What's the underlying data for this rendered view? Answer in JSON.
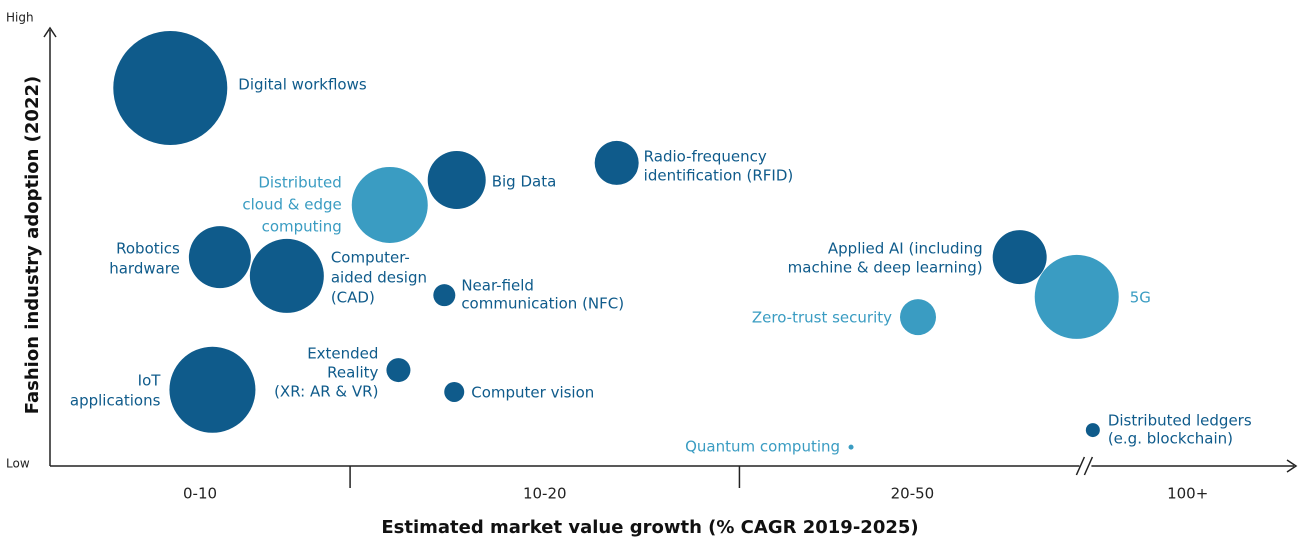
{
  "chart_data": {
    "type": "bubble",
    "x_label": "Estimated market value growth (% CAGR 2019-2025)",
    "y_label": "Fashion industry adoption (2022)",
    "categories": [
      "0-10",
      "10-20",
      "20-50",
      "100+"
    ],
    "xlim": [
      0,
      100
    ],
    "xticks": [
      24.2,
      55.6,
      83.5
    ],
    "axis_break": true,
    "ylim": [
      0,
      100
    ],
    "yticks": [
      {
        "value": 0,
        "label": "Low"
      },
      {
        "value": 100,
        "label": "High"
      }
    ],
    "points": [
      {
        "label": [
          "Digital workflows"
        ],
        "x": 9.7,
        "y": 86.3,
        "size": 57,
        "color": "#0f5b8b"
      },
      {
        "label": [
          "Big Data"
        ],
        "x": 32.8,
        "y": 65.3,
        "size": 29,
        "color": "#0f5b8b"
      },
      {
        "label": [
          "Radio-frequency",
          "identification (RFID)"
        ],
        "x": 45.7,
        "y": 69.2,
        "size": 22,
        "color": "#0f5b8b"
      },
      {
        "label": [
          "Distributed",
          "cloud & edge",
          "computing"
        ],
        "x": 27.4,
        "y": 59.6,
        "size": 38,
        "color": "#3a9cc2"
      },
      {
        "label": [
          "Robotics",
          "hardware"
        ],
        "x": 13.7,
        "y": 47.7,
        "size": 31,
        "color": "#0f5b8b"
      },
      {
        "label": [
          "Computer-",
          "aided design",
          "(CAD)"
        ],
        "x": 19.1,
        "y": 43.4,
        "size": 37,
        "color": "#0f5b8b"
      },
      {
        "label": [
          "Near-field",
          "communication (NFC)"
        ],
        "x": 31.8,
        "y": 39.0,
        "size": 11,
        "color": "#0f5b8b"
      },
      {
        "label": [
          "Applied AI (including",
          "machine & deep learning)"
        ],
        "x": 78.2,
        "y": 47.7,
        "size": 27,
        "color": "#0f5b8b"
      },
      {
        "label": [
          "5G"
        ],
        "x": 82.8,
        "y": 38.6,
        "size": 42,
        "color": "#3a9cc2"
      },
      {
        "label": [
          "Zero-trust security"
        ],
        "x": 70.0,
        "y": 34.0,
        "size": 18,
        "color": "#3a9cc2"
      },
      {
        "label": [
          "Extended",
          "Reality",
          "(XR: AR & VR)"
        ],
        "x": 28.1,
        "y": 21.9,
        "size": 12,
        "color": "#0f5b8b"
      },
      {
        "label": [
          "IoT",
          "applications"
        ],
        "x": 13.1,
        "y": 17.4,
        "size": 43,
        "color": "#0f5b8b"
      },
      {
        "label": [
          "Computer vision"
        ],
        "x": 32.6,
        "y": 16.9,
        "size": 10,
        "color": "#0f5b8b"
      },
      {
        "label": [
          "Quantum computing"
        ],
        "x": 64.6,
        "y": 4.3,
        "size": 2.5,
        "color": "#3a9cc2"
      },
      {
        "label": [
          "Distributed ledgers",
          "(e.g. blockchain)"
        ],
        "x": 84.1,
        "y": 8.2,
        "size": 7,
        "color": "#0f5b8b"
      }
    ]
  }
}
